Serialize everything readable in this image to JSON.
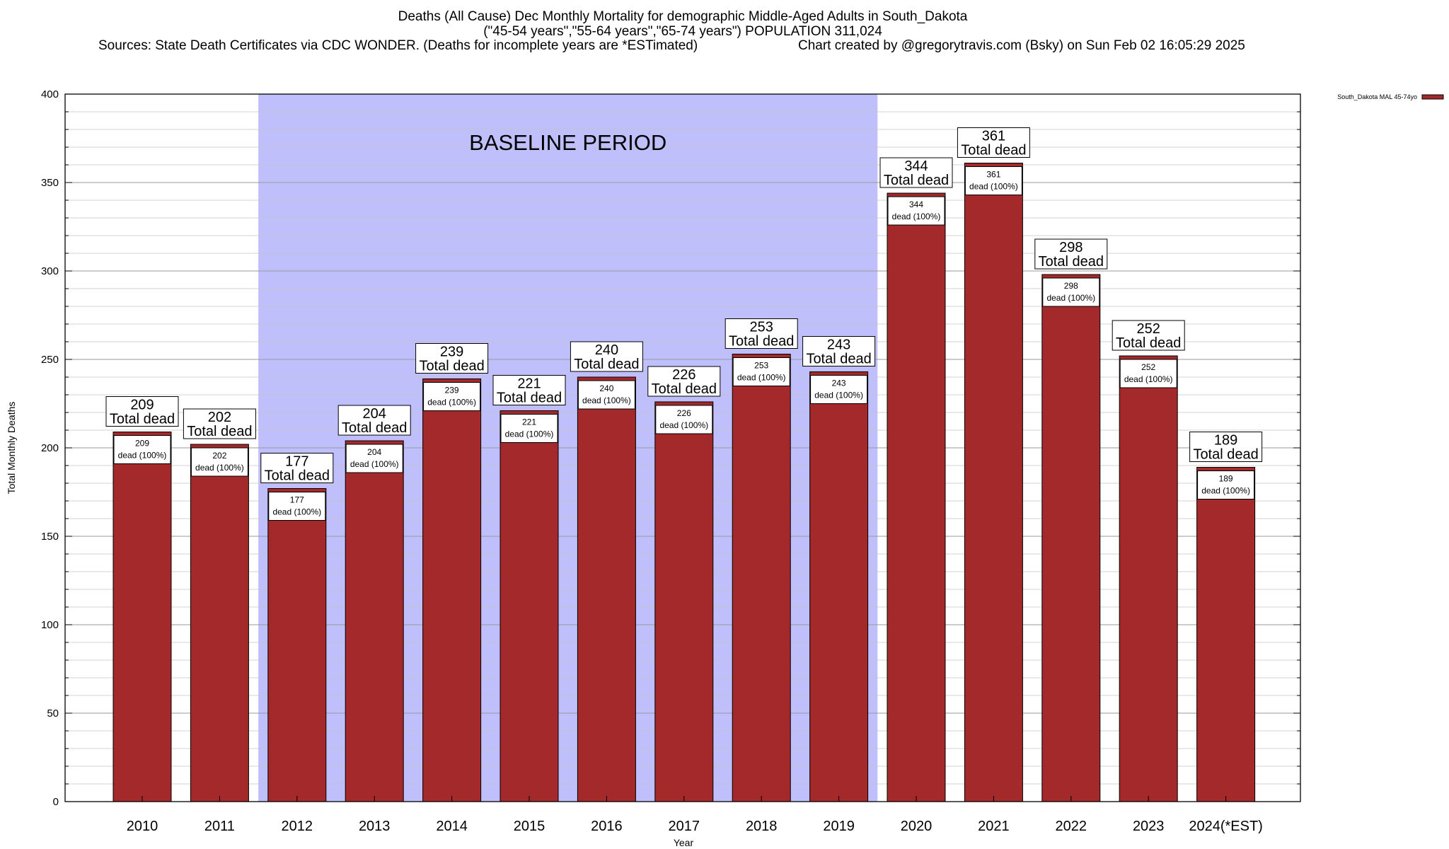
{
  "header": {
    "title_line1": "Deaths (All Cause) Dec Monthly Mortality for demographic Middle-Aged Adults in South_Dakota",
    "title_line2": "(\"45-54 years\",\"55-64 years\",\"65-74 years\") POPULATION 311,024",
    "title_line3_left": "Sources: State Death Certificates via CDC WONDER. (Deaths for incomplete years are *ESTimated)",
    "title_line3_right": "Chart created by @gregorytravis.com (Bsky) on Sun Feb 02 16:05:29 2025"
  },
  "chart_data": {
    "type": "bar",
    "title": "Deaths (All Cause) Dec Monthly Mortality for demographic Middle-Aged Adults in South_Dakota",
    "xlabel": "Year",
    "ylabel": "Total Monthly Deaths",
    "ylim": [
      0,
      400
    ],
    "yticks": [
      0,
      50,
      100,
      150,
      200,
      250,
      300,
      350,
      400
    ],
    "ytick_labels": [
      "0",
      "50",
      "100",
      "150",
      "200",
      "250",
      "300",
      "350",
      "400"
    ],
    "grid": "horizontal",
    "categories": [
      "2010",
      "2011",
      "2012",
      "2013",
      "2014",
      "2015",
      "2016",
      "2017",
      "2018",
      "2019",
      "2020",
      "2021",
      "2022",
      "2023",
      "2024(*EST)"
    ],
    "series": [
      {
        "name": "South_Dakota MAL 45-74yo",
        "color": "#a3292b",
        "values": [
          209,
          202,
          177,
          204,
          239,
          221,
          240,
          226,
          253,
          243,
          344,
          361,
          298,
          252,
          189
        ]
      }
    ],
    "total_labels": [
      "209",
      "202",
      "177",
      "204",
      "239",
      "221",
      "240",
      "226",
      "253",
      "243",
      "344",
      "361",
      "298",
      "252",
      "189"
    ],
    "total_suffix": "Total dead",
    "inner_labels": [
      "209",
      "202",
      "177",
      "204",
      "239",
      "221",
      "240",
      "226",
      "253",
      "243",
      "344",
      "361",
      "298",
      "252",
      "189"
    ],
    "inner_suffix": "dead (100%)",
    "baseline": {
      "label": "BASELINE PERIOD",
      "from": "2012",
      "to": "2019",
      "color": "#bfbffc"
    },
    "legend": {
      "position": "top-right",
      "label": "South_Dakota MAL 45-74yo"
    }
  }
}
